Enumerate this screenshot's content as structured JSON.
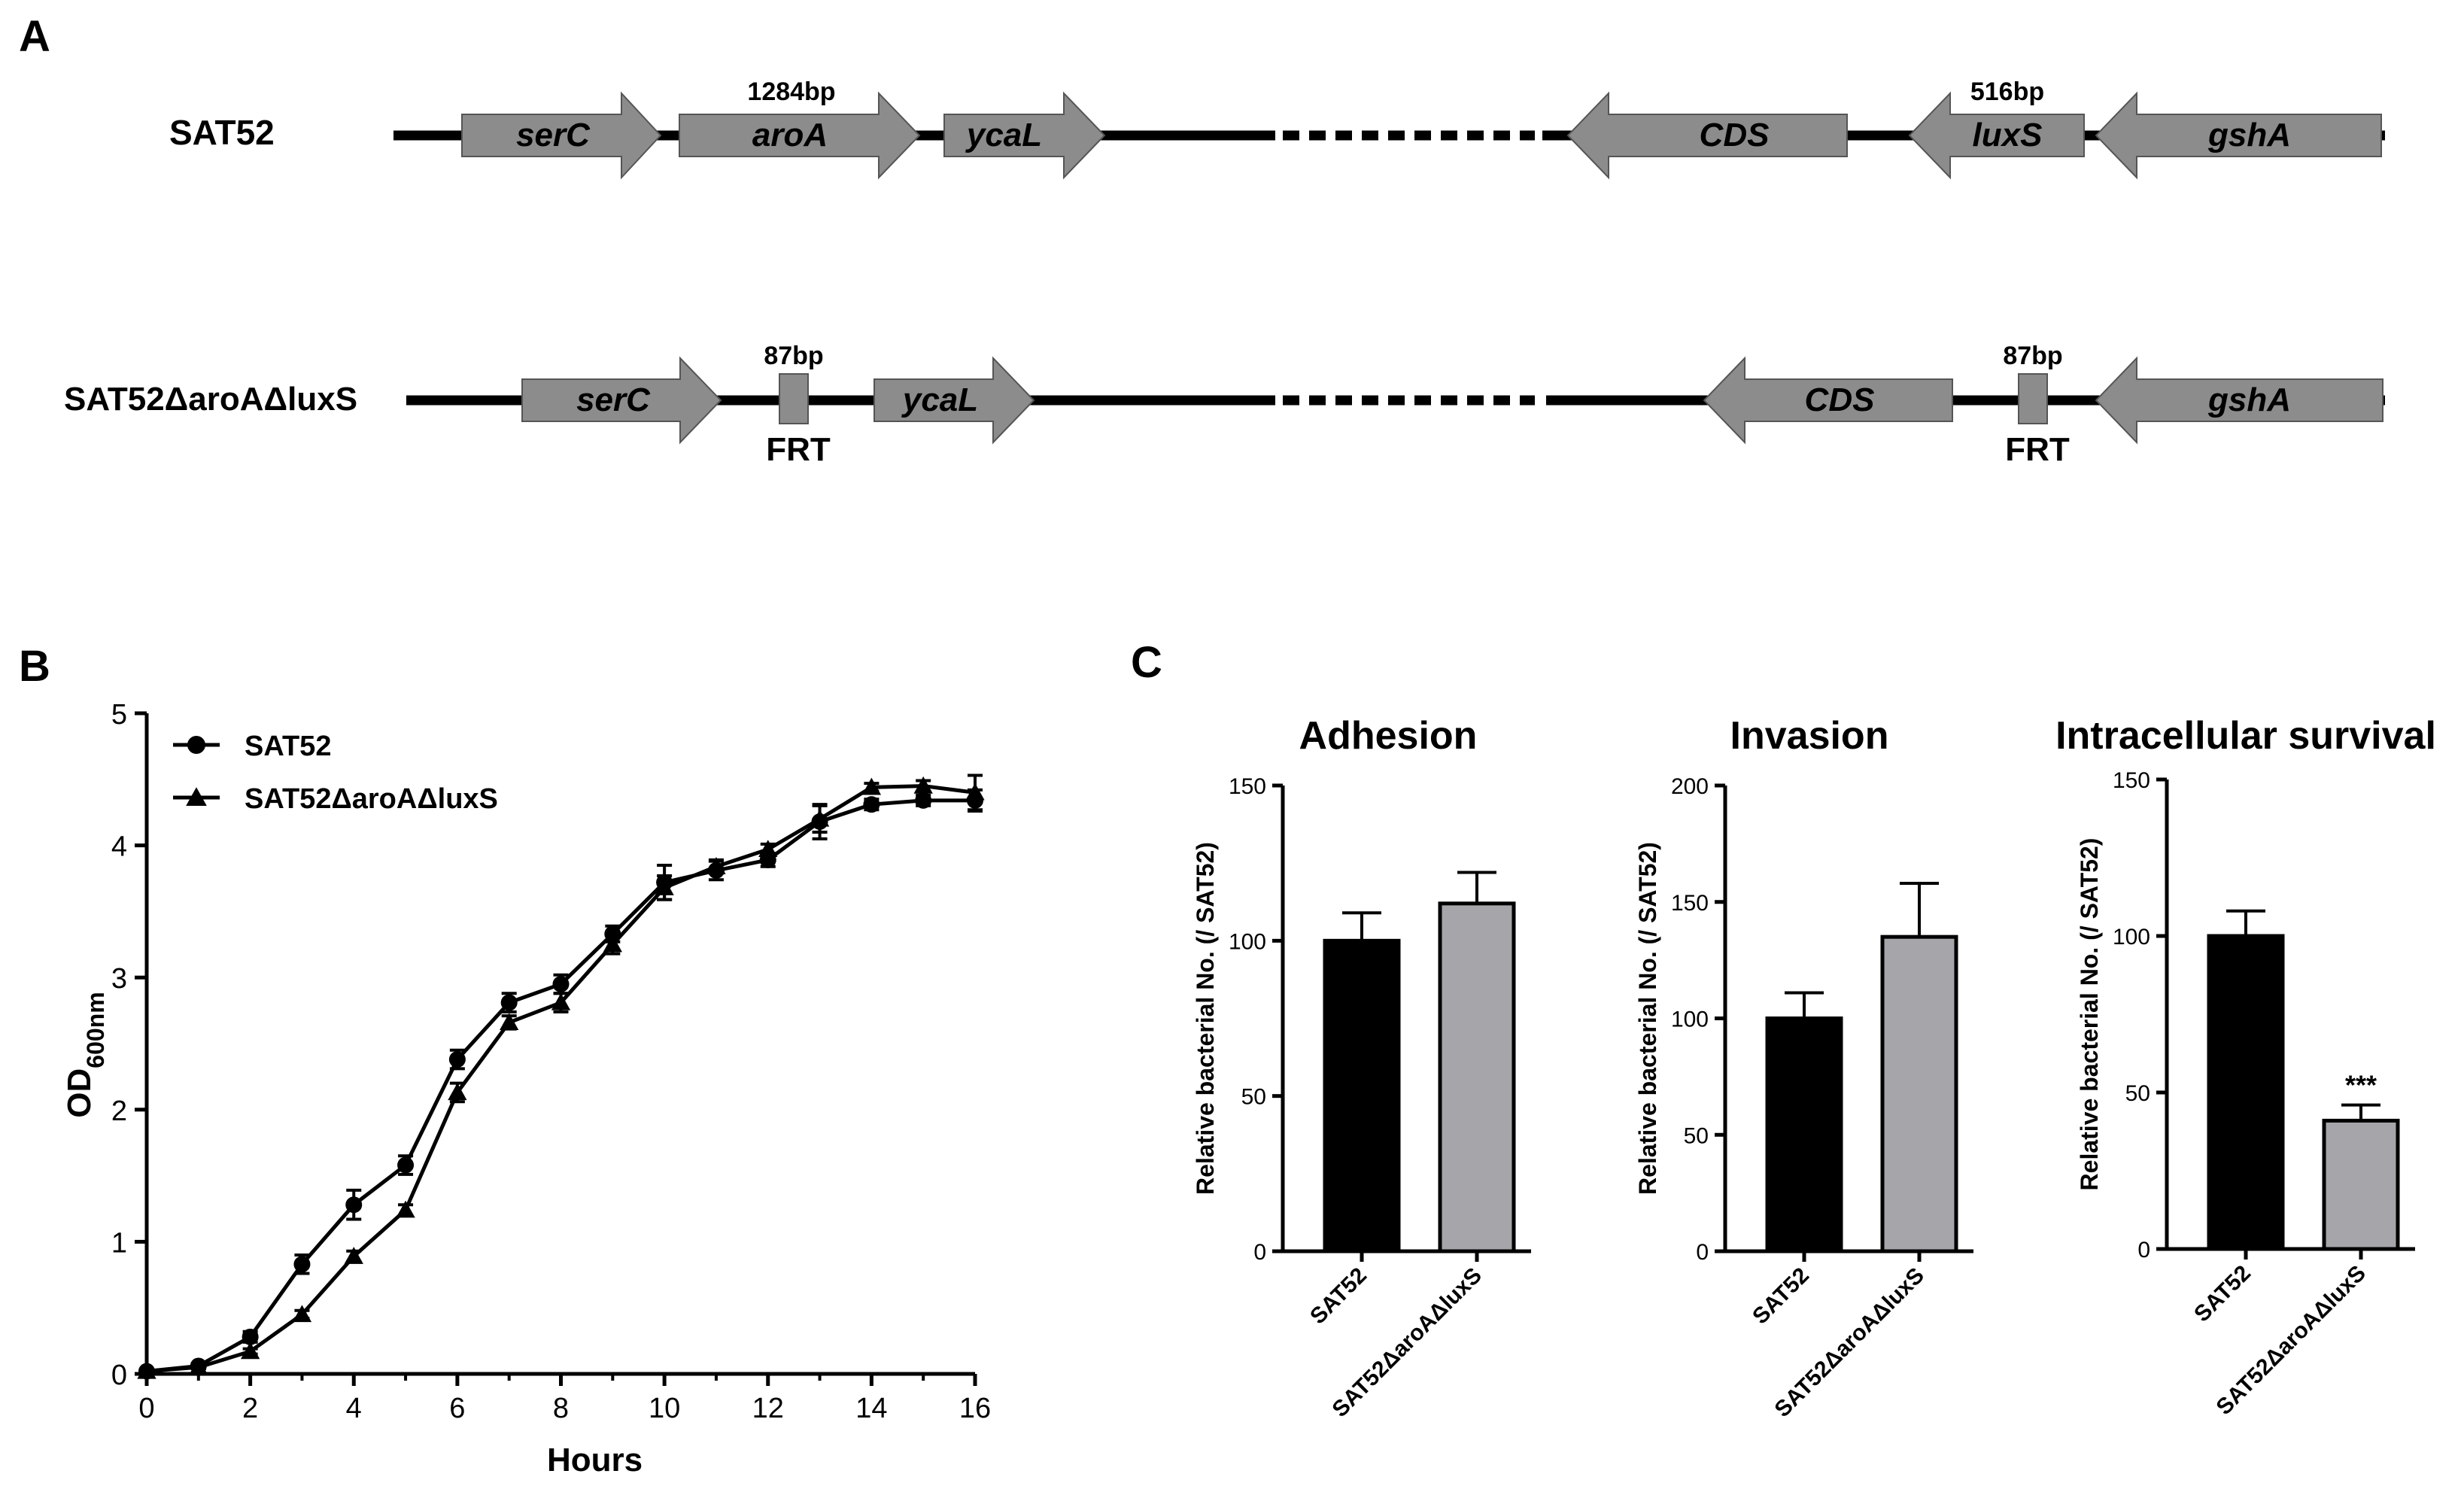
{
  "panelA": {
    "label": "A",
    "strains": [
      {
        "name": "SAT52",
        "genes": [
          {
            "name": "serC",
            "dir": "right",
            "italic": true
          },
          {
            "name": "aroA",
            "dir": "right",
            "italic": true,
            "size": "1284bp"
          },
          {
            "name": "ycaL",
            "dir": "right",
            "italic": true
          },
          {
            "name": "CDS",
            "dir": "left",
            "italic": true
          },
          {
            "name": "luxS",
            "dir": "left",
            "italic": true,
            "size": "516bp"
          },
          {
            "name": "gshA",
            "dir": "left",
            "italic": true
          }
        ]
      },
      {
        "name": "SAT52ΔaroAΔluxS",
        "genes": [
          {
            "name": "serC",
            "dir": "right",
            "italic": true
          },
          {
            "name": "FRT",
            "type": "scar",
            "size": "87bp"
          },
          {
            "name": "ycaL",
            "dir": "right",
            "italic": true
          },
          {
            "name": "CDS",
            "dir": "left",
            "italic": true
          },
          {
            "name": "FRT",
            "type": "scar",
            "size": "87bp"
          },
          {
            "name": "gshA",
            "dir": "left",
            "italic": true
          }
        ]
      }
    ]
  },
  "colors": {
    "wt": "#000000",
    "mutant": "#a6a6aa",
    "gene": "#8c8c8c"
  },
  "chart_data": [
    {
      "panel": "B",
      "type": "line",
      "xlabel": "Hours",
      "ylabel": "OD",
      "ylabel_sub": "600nm",
      "xlim": [
        0,
        16
      ],
      "ylim": [
        0,
        5
      ],
      "xticks": [
        0,
        2,
        4,
        6,
        8,
        10,
        12,
        14,
        16
      ],
      "yticks": [
        0,
        1,
        2,
        3,
        4,
        5
      ],
      "legend_position": "top-left",
      "x": [
        0,
        1,
        2,
        3,
        4,
        5,
        6,
        7,
        8,
        9,
        10,
        11,
        12,
        13,
        14,
        15,
        16
      ],
      "series": [
        {
          "name": "SAT52",
          "marker": "circle",
          "values": [
            0.02,
            0.06,
            0.28,
            0.83,
            1.28,
            1.58,
            2.38,
            2.81,
            2.95,
            3.33,
            3.72,
            3.81,
            3.89,
            4.18,
            4.31,
            4.34,
            4.34
          ],
          "errors": [
            0.01,
            0.02,
            0.04,
            0.07,
            0.11,
            0.07,
            0.07,
            0.07,
            0.07,
            0.06,
            0.13,
            0.07,
            0.05,
            0.13,
            0.04,
            0.04,
            0.08
          ]
        },
        {
          "name": "SAT52ΔaroAΔluxS",
          "marker": "triangle",
          "values": [
            0.02,
            0.05,
            0.17,
            0.45,
            0.89,
            1.24,
            2.13,
            2.66,
            2.81,
            3.25,
            3.68,
            3.84,
            3.97,
            4.2,
            4.44,
            4.45,
            4.4
          ],
          "errors": [
            0.01,
            0.01,
            0.02,
            0.03,
            0.04,
            0.04,
            0.07,
            0.05,
            0.07,
            0.07,
            0.09,
            0.05,
            0.04,
            0.1,
            0.03,
            0.04,
            0.13
          ]
        }
      ]
    },
    {
      "panel": "C",
      "type": "bar",
      "title": "Adhesion",
      "ylabel": "Relative bacterial No. (/ SAT52)",
      "ylim": [
        0,
        150
      ],
      "yticks": [
        0,
        50,
        100,
        150
      ],
      "categories": [
        "SAT52",
        "SAT52ΔaroAΔluxS"
      ],
      "values": [
        100,
        112
      ],
      "errors": [
        9,
        10
      ],
      "annotations": [
        "",
        ""
      ]
    },
    {
      "panel": "C",
      "type": "bar",
      "title": "Invasion",
      "ylabel": "Relative bacterial No. (/ SAT52)",
      "ylim": [
        0,
        200
      ],
      "yticks": [
        0,
        50,
        100,
        150,
        200
      ],
      "categories": [
        "SAT52",
        "SAT52ΔaroAΔluxS"
      ],
      "values": [
        100,
        135
      ],
      "errors": [
        11,
        23
      ],
      "annotations": [
        "",
        ""
      ]
    },
    {
      "panel": "C",
      "type": "bar",
      "title": "Intracellular survival",
      "ylabel": "Relative bacterial No. (/ SAT52)",
      "ylim": [
        0,
        150
      ],
      "yticks": [
        0,
        50,
        100,
        150
      ],
      "categories": [
        "SAT52",
        "SAT52ΔaroAΔluxS"
      ],
      "values": [
        100,
        41
      ],
      "errors": [
        8,
        5
      ],
      "annotations": [
        "",
        "***"
      ]
    }
  ],
  "labels": {
    "panelB": "B",
    "panelC": "C"
  }
}
